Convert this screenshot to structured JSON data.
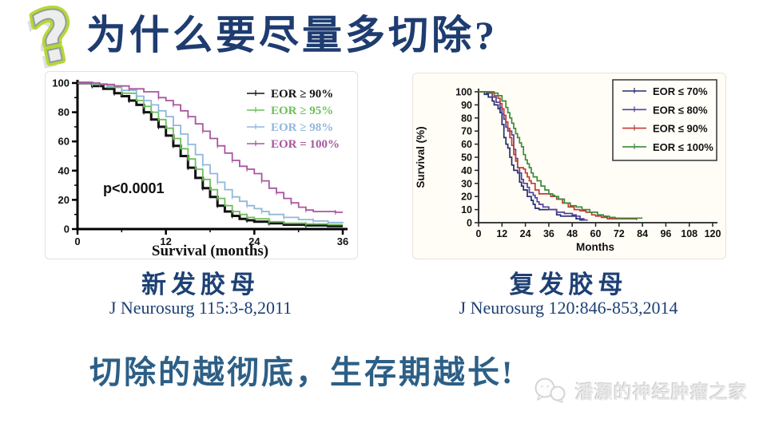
{
  "slide_title": "为什么要尽量多切除?",
  "conclusion_text": "切除的越彻底，生存期越长!",
  "watermark_text": "潘灏的神经肿瘤之家",
  "colors": {
    "title": "#1e3c70",
    "caption": "#1d4074",
    "citation": "#1d4074",
    "conclusion": "#2d5f86",
    "watermark": "#e9e9e9"
  },
  "figures": {
    "left": {
      "caption": "新发胶母",
      "citation": "J Neurosurg 115:3-8,2011"
    },
    "right": {
      "caption": "复发胶母",
      "citation": "J Neurosurg 120:846-853,2014"
    }
  },
  "chart_data": [
    {
      "type": "line",
      "subtype": "kaplan-meier-step",
      "title": "",
      "xlabel": "Survival (months)",
      "ylabel": "",
      "xlim": [
        0,
        36
      ],
      "ylim": [
        0,
        100
      ],
      "xticks": [
        0,
        12,
        24,
        36
      ],
      "yticks": [
        0,
        20,
        40,
        60,
        80,
        100
      ],
      "grid": false,
      "legend_position": "top-right",
      "annotation": "p<0.0001",
      "series": [
        {
          "name": "EOR ≥ 90%",
          "color": "#111111",
          "points": [
            [
              0,
              100
            ],
            [
              2,
              98
            ],
            [
              3.5,
              96
            ],
            [
              5,
              93
            ],
            [
              6,
              91
            ],
            [
              7,
              88
            ],
            [
              8,
              85
            ],
            [
              9,
              80
            ],
            [
              10,
              75
            ],
            [
              11,
              70
            ],
            [
              12,
              64
            ],
            [
              13,
              57
            ],
            [
              14,
              50
            ],
            [
              15,
              42
            ],
            [
              16,
              35
            ],
            [
              17,
              28
            ],
            [
              18,
              22
            ],
            [
              19,
              16
            ],
            [
              20,
              12
            ],
            [
              21,
              9
            ],
            [
              22,
              7
            ],
            [
              23,
              6
            ],
            [
              24,
              5
            ],
            [
              26,
              4
            ],
            [
              28,
              3
            ],
            [
              31,
              2.5
            ],
            [
              34,
              2
            ],
            [
              36,
              2
            ]
          ]
        },
        {
          "name": "EOR ≥ 95%",
          "color": "#6cbf5a",
          "points": [
            [
              0,
              100
            ],
            [
              2,
              99
            ],
            [
              4,
              97
            ],
            [
              6,
              93
            ],
            [
              8,
              88
            ],
            [
              9,
              84
            ],
            [
              10,
              80
            ],
            [
              11,
              75
            ],
            [
              12,
              69
            ],
            [
              13,
              62
            ],
            [
              14,
              55
            ],
            [
              15,
              48
            ],
            [
              16,
              41
            ],
            [
              17,
              34
            ],
            [
              18,
              27
            ],
            [
              19,
              21
            ],
            [
              20,
              16
            ],
            [
              21,
              12
            ],
            [
              22,
              10
            ],
            [
              23,
              8
            ],
            [
              24,
              7
            ],
            [
              26,
              5
            ],
            [
              28,
              4
            ],
            [
              31,
              3.5
            ],
            [
              34,
              3
            ],
            [
              36,
              3
            ]
          ]
        },
        {
          "name": "EOR ≥ 98%",
          "color": "#8fb7dc",
          "points": [
            [
              0,
              100
            ],
            [
              2,
              99.5
            ],
            [
              4,
              98
            ],
            [
              6,
              95
            ],
            [
              8,
              91
            ],
            [
              9,
              88
            ],
            [
              10,
              85
            ],
            [
              11,
              81
            ],
            [
              12,
              77
            ],
            [
              13,
              71
            ],
            [
              14,
              65
            ],
            [
              15,
              58
            ],
            [
              16,
              51
            ],
            [
              17,
              44
            ],
            [
              18,
              38
            ],
            [
              19,
              32
            ],
            [
              20,
              27
            ],
            [
              21,
              22
            ],
            [
              22,
              19
            ],
            [
              23,
              16
            ],
            [
              24,
              14
            ],
            [
              25,
              12
            ],
            [
              26,
              10
            ],
            [
              28,
              8
            ],
            [
              30,
              6.5
            ],
            [
              32,
              5.5
            ],
            [
              34,
              4.5
            ],
            [
              36,
              4
            ]
          ]
        },
        {
          "name": "EOR = 100%",
          "color": "#a9569f",
          "points": [
            [
              0,
              100
            ],
            [
              3,
              99
            ],
            [
              5,
              98
            ],
            [
              7,
              96
            ],
            [
              9,
              94
            ],
            [
              11,
              90
            ],
            [
              12,
              88
            ],
            [
              13,
              85
            ],
            [
              14,
              81
            ],
            [
              15,
              77
            ],
            [
              16,
              72
            ],
            [
              17,
              67
            ],
            [
              18,
              62
            ],
            [
              19,
              57
            ],
            [
              20,
              52
            ],
            [
              21,
              47
            ],
            [
              22,
              43
            ],
            [
              23,
              41
            ],
            [
              24,
              38
            ],
            [
              25,
              33
            ],
            [
              26,
              28
            ],
            [
              27,
              25
            ],
            [
              28,
              21
            ],
            [
              29,
              18
            ],
            [
              30,
              15
            ],
            [
              31,
              13
            ],
            [
              32,
              12
            ],
            [
              35,
              11.5
            ],
            [
              36,
              11.5
            ]
          ]
        }
      ]
    },
    {
      "type": "line",
      "subtype": "kaplan-meier-step",
      "title": "",
      "xlabel": "Months",
      "ylabel": "Survival (%)",
      "xlim": [
        0,
        120
      ],
      "ylim": [
        0,
        100
      ],
      "xticks": [
        0,
        12,
        24,
        36,
        48,
        60,
        72,
        84,
        96,
        108,
        120
      ],
      "yticks": [
        0,
        10,
        20,
        30,
        40,
        50,
        60,
        70,
        80,
        90,
        100
      ],
      "grid": false,
      "legend_position": "top-right boxed",
      "annotation": "",
      "series": [
        {
          "name": "EOR ≤ 70%",
          "color": "#232e6e",
          "points": [
            [
              0,
              100
            ],
            [
              3,
              98
            ],
            [
              5,
              96
            ],
            [
              7,
              93
            ],
            [
              8,
              90
            ],
            [
              10,
              87
            ],
            [
              11,
              84
            ],
            [
              12,
              75
            ],
            [
              13,
              65
            ],
            [
              14,
              60
            ],
            [
              15,
              57
            ],
            [
              16,
              50
            ],
            [
              17,
              44
            ],
            [
              18,
              40
            ],
            [
              20,
              38
            ],
            [
              21,
              31
            ],
            [
              22,
              28
            ],
            [
              23,
              25
            ],
            [
              25,
              20
            ],
            [
              27,
              17
            ],
            [
              28,
              14
            ],
            [
              29,
              11
            ],
            [
              31,
              10
            ],
            [
              38,
              10
            ],
            [
              40,
              6
            ],
            [
              42,
              5
            ],
            [
              49,
              5
            ],
            [
              50,
              3
            ],
            [
              52,
              2
            ],
            [
              55,
              2
            ]
          ]
        },
        {
          "name": "EOR ≤ 80%",
          "color": "#53419a",
          "points": [
            [
              0,
              100
            ],
            [
              4,
              99
            ],
            [
              7,
              96
            ],
            [
              9,
              92
            ],
            [
              11,
              88
            ],
            [
              12,
              83
            ],
            [
              13,
              79
            ],
            [
              14,
              73
            ],
            [
              15,
              70
            ],
            [
              17,
              67
            ],
            [
              18,
              56
            ],
            [
              19,
              49
            ],
            [
              20,
              42
            ],
            [
              21,
              38
            ],
            [
              22,
              33
            ],
            [
              23,
              30
            ],
            [
              25,
              27
            ],
            [
              26,
              23
            ],
            [
              28,
              21
            ],
            [
              29,
              19
            ],
            [
              30,
              16
            ],
            [
              31,
              14
            ],
            [
              33,
              12
            ],
            [
              36,
              10
            ],
            [
              40,
              8
            ],
            [
              44,
              7
            ],
            [
              48,
              6
            ],
            [
              50,
              5
            ],
            [
              52,
              3
            ],
            [
              54,
              2
            ],
            [
              56,
              2
            ]
          ]
        },
        {
          "name": "EOR ≤ 90%",
          "color": "#c23b33",
          "points": [
            [
              0,
              100
            ],
            [
              6,
              99
            ],
            [
              8,
              97
            ],
            [
              10,
              95
            ],
            [
              11,
              91
            ],
            [
              12,
              87
            ],
            [
              13,
              82
            ],
            [
              14,
              77
            ],
            [
              15,
              72
            ],
            [
              16,
              65
            ],
            [
              17,
              59
            ],
            [
              18,
              52
            ],
            [
              19,
              47
            ],
            [
              20,
              42
            ],
            [
              23,
              41
            ],
            [
              24,
              38
            ],
            [
              25,
              35
            ],
            [
              26,
              32
            ],
            [
              27,
              30
            ],
            [
              29,
              25
            ],
            [
              31,
              22
            ],
            [
              35,
              22
            ],
            [
              37,
              20
            ],
            [
              40,
              18
            ],
            [
              43,
              15
            ],
            [
              46,
              12
            ],
            [
              49,
              10
            ],
            [
              52,
              9
            ],
            [
              55,
              8
            ],
            [
              58,
              6
            ],
            [
              60,
              5
            ],
            [
              63,
              4
            ],
            [
              66,
              3
            ],
            [
              79,
              3
            ],
            [
              81,
              2
            ]
          ]
        },
        {
          "name": "EOR ≤ 100%",
          "color": "#3c8a3c",
          "points": [
            [
              0,
              100
            ],
            [
              8,
              99
            ],
            [
              10,
              97
            ],
            [
              12,
              93
            ],
            [
              14,
              88
            ],
            [
              15,
              84
            ],
            [
              16,
              80
            ],
            [
              17,
              76
            ],
            [
              18,
              72
            ],
            [
              19,
              68
            ],
            [
              20,
              65
            ],
            [
              21,
              61
            ],
            [
              22,
              58
            ],
            [
              23,
              52
            ],
            [
              24,
              48
            ],
            [
              25,
              45
            ],
            [
              26,
              42
            ],
            [
              27,
              38
            ],
            [
              28,
              35
            ],
            [
              30,
              32
            ],
            [
              32,
              28
            ],
            [
              34,
              25
            ],
            [
              36,
              22
            ],
            [
              38,
              21
            ],
            [
              39,
              20
            ],
            [
              41,
              18
            ],
            [
              44,
              15
            ],
            [
              47,
              13
            ],
            [
              50,
              12
            ],
            [
              53,
              10
            ],
            [
              57,
              8
            ],
            [
              61,
              6
            ],
            [
              64,
              5
            ],
            [
              67,
              4
            ],
            [
              70,
              3.5
            ],
            [
              84,
              3.5
            ]
          ]
        }
      ]
    }
  ]
}
